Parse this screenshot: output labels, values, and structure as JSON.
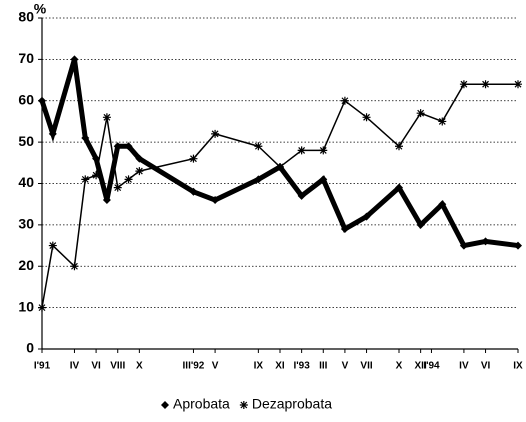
{
  "chart_data": {
    "type": "line",
    "ylabel": "%",
    "x": [
      0,
      1,
      3,
      4,
      5,
      6,
      7,
      8,
      9,
      14,
      16,
      20,
      22,
      24,
      26,
      28,
      30,
      33,
      35,
      37,
      39,
      41,
      44
    ],
    "xlim": [
      0,
      44
    ],
    "xticks": [
      {
        "value": 0,
        "label": "I'91"
      },
      {
        "value": 3,
        "label": "IV"
      },
      {
        "value": 5,
        "label": "VI"
      },
      {
        "value": 7,
        "label": "VIII"
      },
      {
        "value": 9,
        "label": "X"
      },
      {
        "value": 14,
        "label": "III'92"
      },
      {
        "value": 16,
        "label": "V"
      },
      {
        "value": 20,
        "label": "IX"
      },
      {
        "value": 22,
        "label": "XI"
      },
      {
        "value": 24,
        "label": "I'93"
      },
      {
        "value": 26,
        "label": "III"
      },
      {
        "value": 28,
        "label": "V"
      },
      {
        "value": 30,
        "label": "VII"
      },
      {
        "value": 33,
        "label": "X"
      },
      {
        "value": 35,
        "label": "XII"
      },
      {
        "value": 36,
        "label": "I'94"
      },
      {
        "value": 39,
        "label": "IV"
      },
      {
        "value": 41,
        "label": "VI"
      },
      {
        "value": 44,
        "label": "IX"
      }
    ],
    "ylim": [
      0,
      80
    ],
    "yticks": [
      0,
      10,
      20,
      30,
      40,
      50,
      60,
      70,
      80
    ],
    "grid": true,
    "legend": "bottom",
    "series": [
      {
        "name": "Aprobata",
        "color": "#000000",
        "marker": "diamond",
        "values": [
          60,
          52,
          70,
          51,
          46,
          36,
          49,
          49,
          46,
          38,
          36,
          41,
          44,
          37,
          41,
          29,
          32,
          39,
          30,
          35,
          25,
          26,
          25
        ]
      },
      {
        "name": "Dezaprobata",
        "color": "#000000",
        "marker": "star",
        "values": [
          10,
          25,
          20,
          41,
          42,
          56,
          39,
          41,
          43,
          46,
          52,
          49,
          44,
          48,
          48,
          60,
          56,
          49,
          57,
          55,
          64,
          64,
          64
        ]
      }
    ]
  }
}
